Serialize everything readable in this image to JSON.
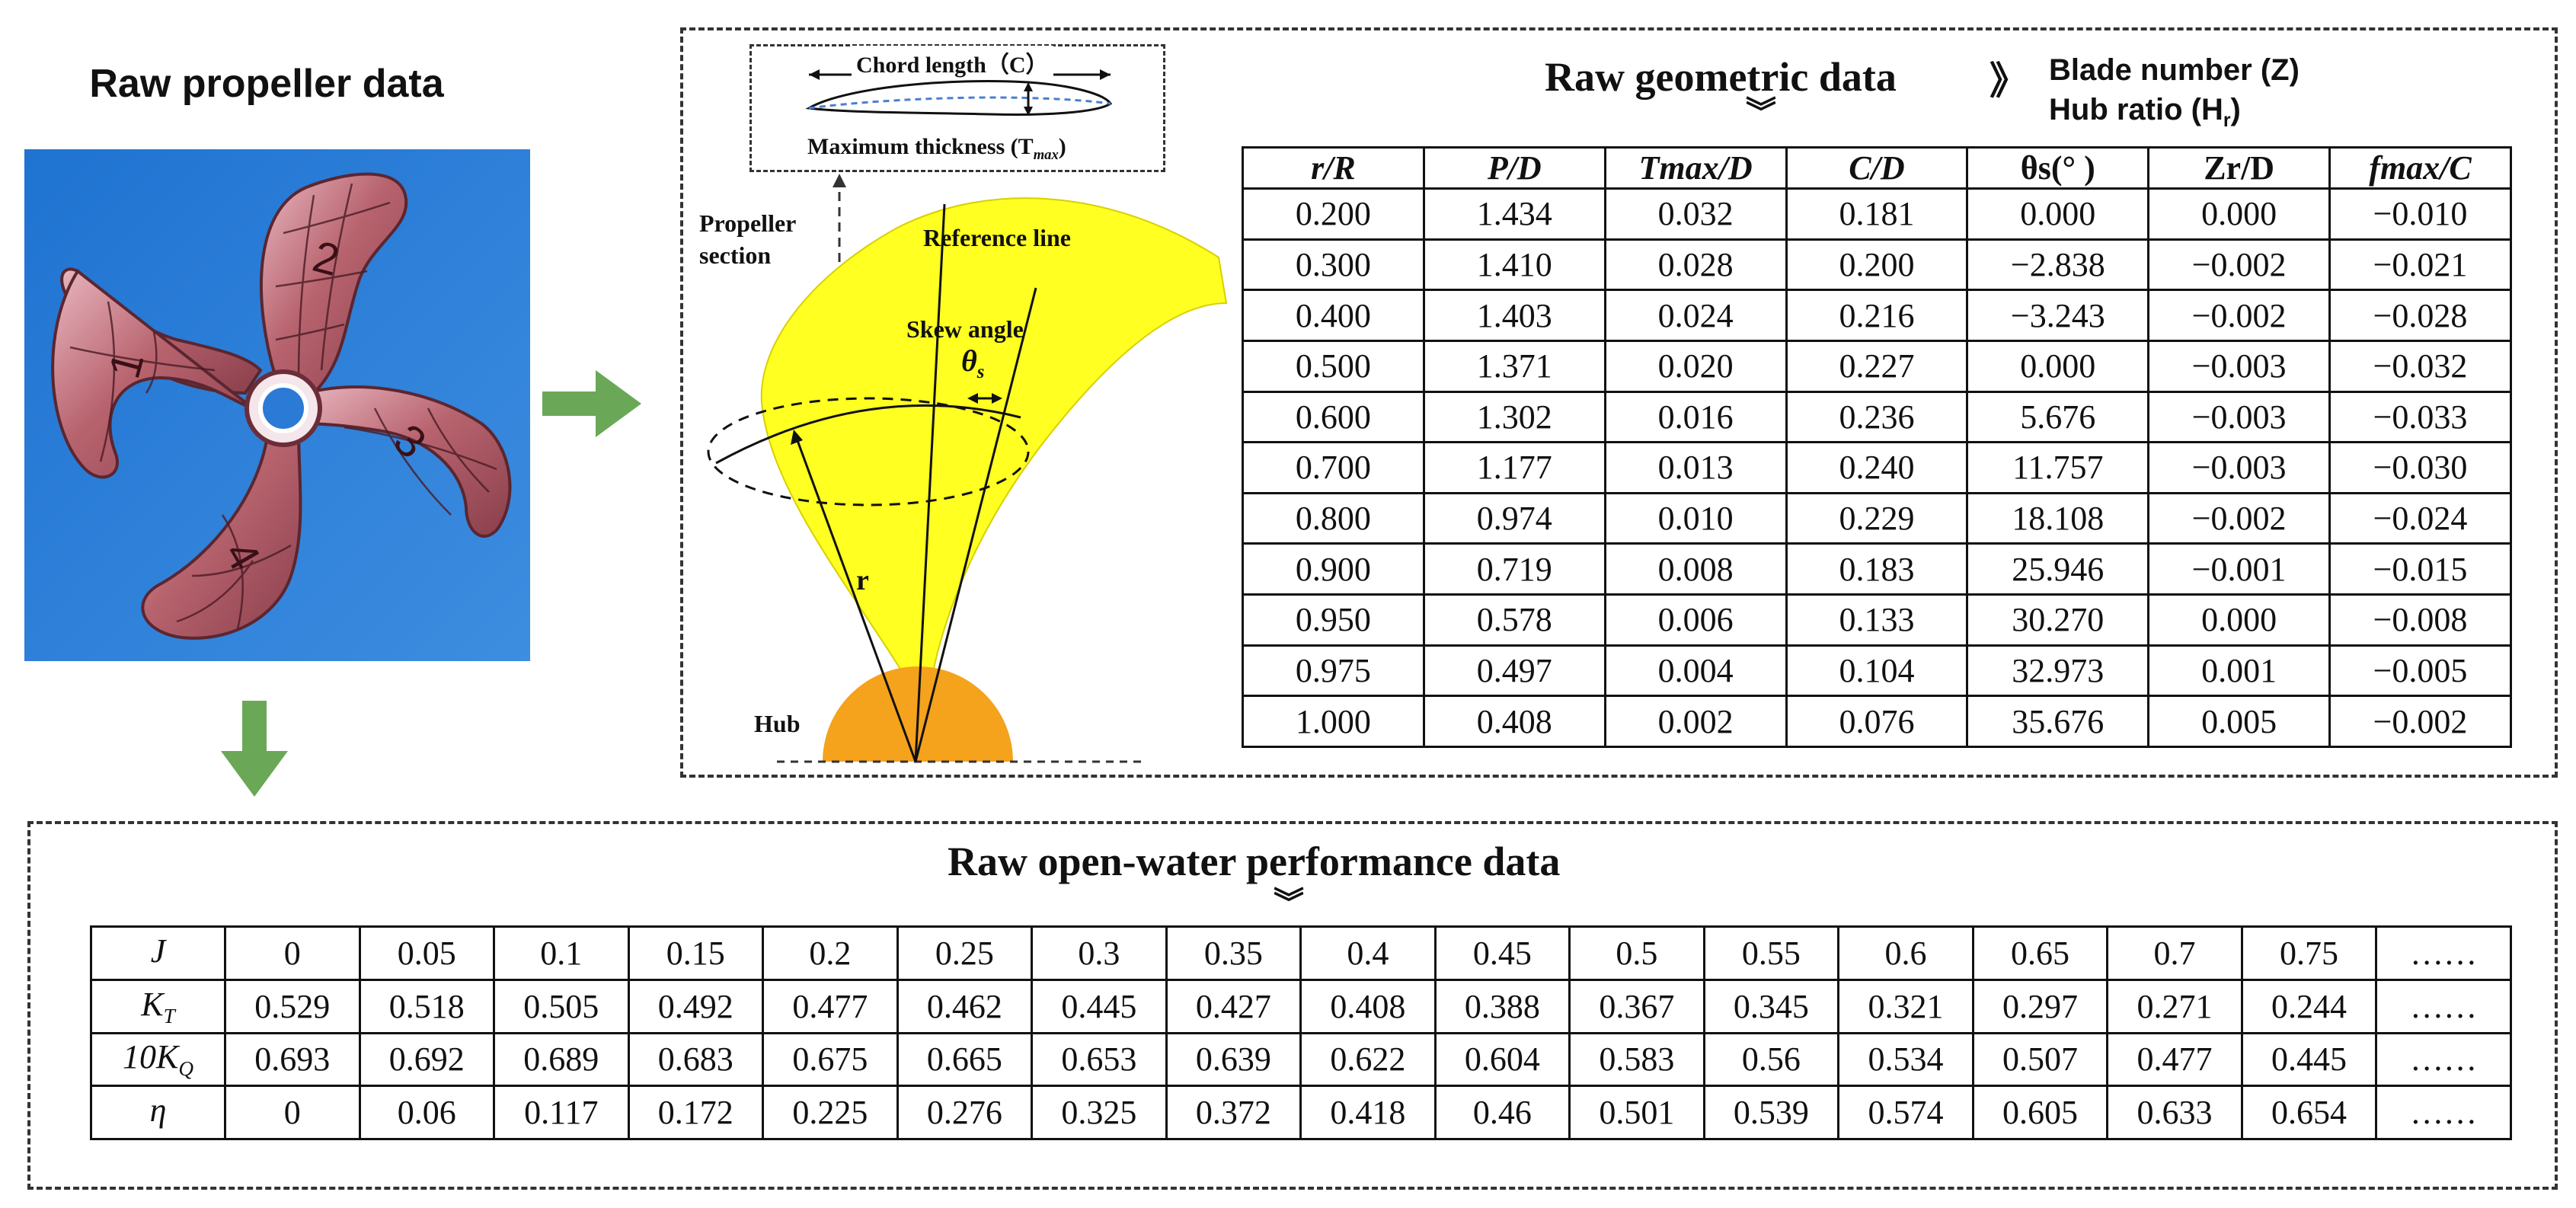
{
  "propeller_panel": {
    "title": "Raw propeller data",
    "blade_marks": [
      "2",
      "1",
      "3",
      "4"
    ]
  },
  "diagram": {
    "chord_label": "Chord length（C）",
    "max_thickness_label": "Maximum thickness (T",
    "max_thickness_sub": "max",
    "propeller_section_line1": "Propeller",
    "propeller_section_line2": "section",
    "reference_line": "Reference line",
    "skew_angle": "Skew angle",
    "theta_symbol": "θ",
    "theta_sub": "s",
    "radius_label": "r",
    "hub_label": "Hub"
  },
  "geometric": {
    "title": "Raw geometric data",
    "arrow": "》",
    "chevron": "︾",
    "blade_number": "Blade number (Z)",
    "hub_ratio": "Hub ratio (H",
    "hub_ratio_sub": "r",
    "hub_ratio_close": ")",
    "headers": [
      "r/R",
      "P/D",
      "Tmax/D",
      "C/D",
      "θs(° )",
      "Zr/D",
      "fmax/C"
    ],
    "rows": [
      [
        "0.200",
        "1.434",
        "0.032",
        "0.181",
        "0.000",
        "0.000",
        "−0.010"
      ],
      [
        "0.300",
        "1.410",
        "0.028",
        "0.200",
        "−2.838",
        "−0.002",
        "−0.021"
      ],
      [
        "0.400",
        "1.403",
        "0.024",
        "0.216",
        "−3.243",
        "−0.002",
        "−0.028"
      ],
      [
        "0.500",
        "1.371",
        "0.020",
        "0.227",
        "0.000",
        "−0.003",
        "−0.032"
      ],
      [
        "0.600",
        "1.302",
        "0.016",
        "0.236",
        "5.676",
        "−0.003",
        "−0.033"
      ],
      [
        "0.700",
        "1.177",
        "0.013",
        "0.240",
        "11.757",
        "−0.003",
        "−0.030"
      ],
      [
        "0.800",
        "0.974",
        "0.010",
        "0.229",
        "18.108",
        "−0.002",
        "−0.024"
      ],
      [
        "0.900",
        "0.719",
        "0.008",
        "0.183",
        "25.946",
        "−0.001",
        "−0.015"
      ],
      [
        "0.950",
        "0.578",
        "0.006",
        "0.133",
        "30.270",
        "0.000",
        "−0.008"
      ],
      [
        "0.975",
        "0.497",
        "0.004",
        "0.104",
        "32.973",
        "0.001",
        "−0.005"
      ],
      [
        "1.000",
        "0.408",
        "0.002",
        "0.076",
        "35.676",
        "0.005",
        "−0.002"
      ]
    ]
  },
  "openwater": {
    "title": "Raw open-water performance data",
    "chevron": "︾",
    "row_labels": [
      "J",
      "K",
      "10K",
      "η"
    ],
    "row_label_subs": [
      "",
      "T",
      "Q",
      ""
    ],
    "rows": [
      [
        "0",
        "0.05",
        "0.1",
        "0.15",
        "0.2",
        "0.25",
        "0.3",
        "0.35",
        "0.4",
        "0.45",
        "0.5",
        "0.55",
        "0.6",
        "0.65",
        "0.7",
        "0.75",
        "……"
      ],
      [
        "0.529",
        "0.518",
        "0.505",
        "0.492",
        "0.477",
        "0.462",
        "0.445",
        "0.427",
        "0.408",
        "0.388",
        "0.367",
        "0.345",
        "0.321",
        "0.297",
        "0.271",
        "0.244",
        "……"
      ],
      [
        "0.693",
        "0.692",
        "0.689",
        "0.683",
        "0.675",
        "0.665",
        "0.653",
        "0.639",
        "0.622",
        "0.604",
        "0.583",
        "0.56",
        "0.534",
        "0.507",
        "0.477",
        "0.445",
        "……"
      ],
      [
        "0",
        "0.06",
        "0.117",
        "0.172",
        "0.225",
        "0.276",
        "0.325",
        "0.372",
        "0.418",
        "0.46",
        "0.501",
        "0.539",
        "0.574",
        "0.605",
        "0.633",
        "0.654",
        "……"
      ]
    ]
  },
  "colors": {
    "photo_bg": "#2f7fd6",
    "blade": "#b96a78",
    "blade_light": "#e6b3bc",
    "arrow": "#6aa857",
    "blade_section": "#ffff22",
    "hub": "#f5a21d"
  }
}
